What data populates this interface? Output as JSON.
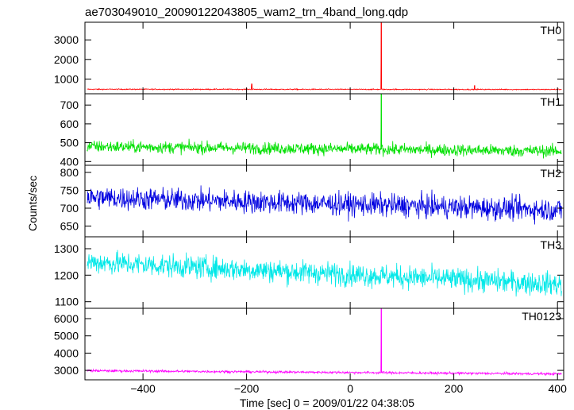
{
  "chart_data": {
    "type": "line",
    "title": "ae703049010_20090122043805_wam2_trn_4band_long.qdp",
    "xlabel": "Time [sec] 0 = 2009/01/22 04:38:05",
    "ylabel": "Counts/sec",
    "xlim": [
      -512,
      412
    ],
    "x_ticks": [
      -400,
      -200,
      0,
      200,
      400
    ],
    "x_tick_labels": [
      "−400",
      "−200",
      "0",
      "200",
      "400"
    ],
    "grid": false,
    "series": [
      {
        "name": "TH0",
        "color": "#ff0000",
        "ylim": [
          250,
          3900
        ],
        "y_ticks": [
          1000,
          2000,
          3000
        ],
        "baseline_start": 480,
        "baseline_end": 470,
        "noise": 45,
        "spikes": [
          {
            "x": 60,
            "y": 3900
          },
          {
            "x": -190,
            "y": 750
          },
          {
            "x": 240,
            "y": 680
          }
        ]
      },
      {
        "name": "TH1",
        "color": "#00e000",
        "ylim": [
          380,
          760
        ],
        "y_ticks": [
          400,
          500,
          600,
          700
        ],
        "baseline_start": 480,
        "baseline_end": 455,
        "noise": 55,
        "spikes": [
          {
            "x": 60,
            "y": 760
          }
        ]
      },
      {
        "name": "TH2",
        "color": "#0000e0",
        "ylim": [
          620,
          820
        ],
        "y_ticks": [
          650,
          700,
          750,
          800
        ],
        "baseline_start": 730,
        "baseline_end": 695,
        "noise": 55,
        "spikes": []
      },
      {
        "name": "TH3",
        "color": "#00e8e8",
        "ylim": [
          1075,
          1345
        ],
        "y_ticks": [
          1100,
          1200,
          1300
        ],
        "baseline_start": 1250,
        "baseline_end": 1165,
        "noise": 75,
        "spikes": []
      },
      {
        "name": "TH0123",
        "color": "#ff00ff",
        "ylim": [
          2450,
          6600
        ],
        "y_ticks": [
          3000,
          4000,
          5000,
          6000
        ],
        "baseline_start": 2980,
        "baseline_end": 2790,
        "noise": 120,
        "spikes": [
          {
            "x": 60,
            "y": 6600
          }
        ]
      }
    ]
  }
}
